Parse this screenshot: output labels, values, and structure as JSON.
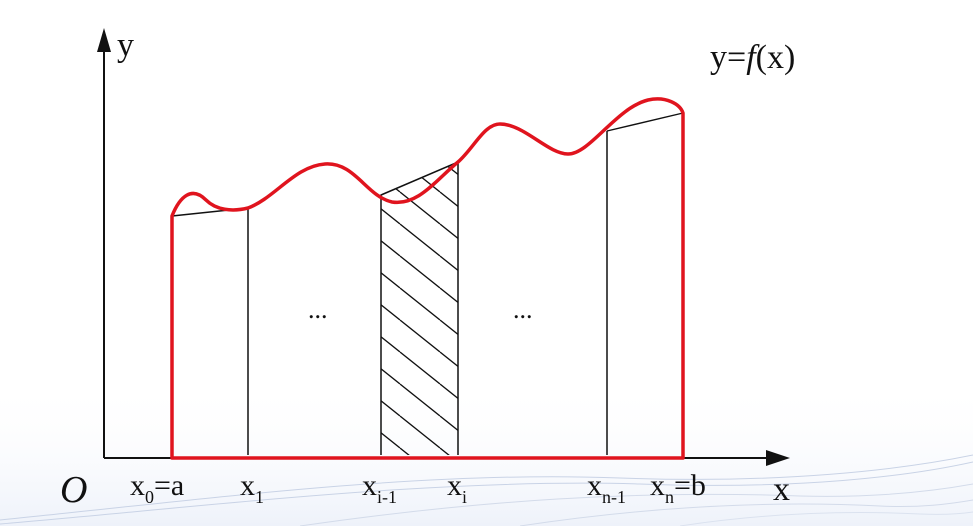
{
  "diagram": {
    "y_axis_label": "y",
    "x_axis_label": "x",
    "origin_label": "O",
    "function_label": {
      "prefix": "y=",
      "italic": "f",
      "suffix": "(x)"
    },
    "ellipsis_left": "...",
    "ellipsis_right": "...",
    "ticks": [
      {
        "base": "x",
        "sub": "0",
        "suffix": "=a"
      },
      {
        "base": "x",
        "sub": "1",
        "suffix": ""
      },
      {
        "base": "x",
        "sub": "i-1",
        "suffix": ""
      },
      {
        "base": "x",
        "sub": "i",
        "suffix": ""
      },
      {
        "base": "x",
        "sub": "n-1",
        "suffix": ""
      },
      {
        "base": "x",
        "sub": "n",
        "suffix": "=b"
      }
    ],
    "colors": {
      "curve": "#e0141e",
      "lines": "#111111",
      "background_waves": "#c9d3e6"
    }
  }
}
